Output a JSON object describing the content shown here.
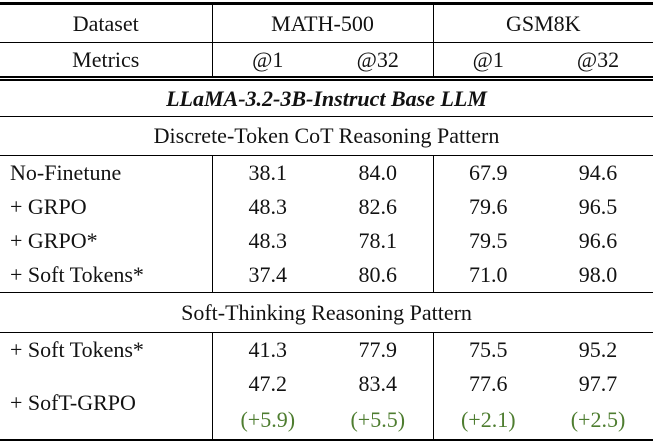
{
  "header": {
    "dataset": "Dataset",
    "metrics": "Metrics",
    "math500": "MATH-500",
    "gsm8k": "GSM8K",
    "metric_cols": [
      "@1",
      "@32",
      "@1",
      "@32"
    ]
  },
  "sections": {
    "base_llm": "LLaMA-3.2-3B-Instruct Base LLM",
    "discrete": "Discrete-Token CoT Reasoning Pattern",
    "soft": "Soft-Thinking Reasoning Pattern"
  },
  "discrete_rows": [
    {
      "label": "No-Finetune",
      "values": [
        "38.1",
        "84.0",
        "67.9",
        "94.6"
      ]
    },
    {
      "label": "+ GRPO",
      "values": [
        "48.3",
        "82.6",
        "79.6",
        "96.5"
      ]
    },
    {
      "label": "+ GRPO*",
      "values": [
        "48.3",
        "78.1",
        "79.5",
        "96.6"
      ]
    },
    {
      "label": "+ Soft Tokens*",
      "values": [
        "37.4",
        "80.6",
        "71.0",
        "98.0"
      ]
    }
  ],
  "soft_rows": [
    {
      "label": "+ Soft Tokens*",
      "values": [
        "41.3",
        "77.9",
        "75.5",
        "95.2"
      ]
    }
  ],
  "soft_grpo": {
    "label": "+ SofT-GRPO",
    "values": [
      "47.2",
      "83.4",
      "77.6",
      "97.7"
    ],
    "deltas": [
      "(+5.9)",
      "(+5.5)",
      "(+2.1)",
      "(+2.5)"
    ]
  },
  "colors": {
    "delta_green": "#4e7d30",
    "rule_black": "#000000"
  }
}
